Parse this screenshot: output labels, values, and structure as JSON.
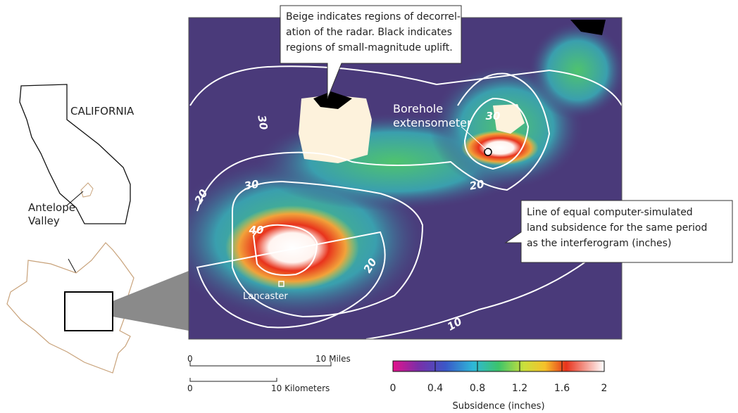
{
  "map": {
    "callouts": {
      "decorrelation": [
        "Beige indicates regions of decorrel-",
        "ation of the radar. Black indicates",
        "regions of small-magnitude uplift."
      ],
      "contour_line": [
        "Line of equal computer-simulated",
        "land subsidence for the same period",
        "as the interferogram (inches)"
      ]
    },
    "labels": {
      "borehole": [
        "Borehole",
        "extensometer"
      ],
      "lancaster": "Lancaster"
    },
    "contour_labels": [
      "30",
      "30",
      "20",
      "20",
      "30",
      "40",
      "20",
      "10"
    ]
  },
  "inset": {
    "state": "CALIFORNIA",
    "region": [
      "Antelope",
      "Valley"
    ]
  },
  "scale_bars": [
    {
      "start": "0",
      "end": "10 Miles"
    },
    {
      "start": "0",
      "end": "10 Kilometers"
    }
  ],
  "colorbar": {
    "title": "Subsidence (inches)",
    "range": [
      0,
      2
    ],
    "ticks": [
      0,
      0.4,
      0.8,
      1.2,
      1.6,
      2
    ]
  }
}
